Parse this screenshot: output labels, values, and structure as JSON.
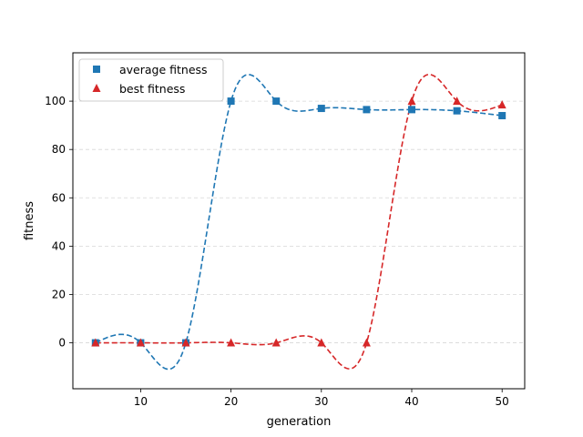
{
  "chart_data": {
    "type": "line",
    "xlabel": "generation",
    "ylabel": "fitness",
    "xlim": [
      2.5,
      52.5
    ],
    "ylim": [
      -19,
      120
    ],
    "xticks": [
      10,
      20,
      30,
      40,
      50
    ],
    "yticks": [
      0,
      20,
      40,
      60,
      80,
      100
    ],
    "grid": "horizontal dashed",
    "legend_position": "top-left",
    "x": [
      5,
      10,
      15,
      20,
      25,
      30,
      35,
      40,
      45,
      50
    ],
    "series": [
      {
        "name": "average fitness",
        "marker": "square",
        "color": "#1f77b4",
        "values": [
          0,
          0,
          0,
          100,
          100,
          97,
          96.5,
          96.5,
          96,
          94
        ]
      },
      {
        "name": "best fitness",
        "marker": "triangle",
        "color": "#d62728",
        "values": [
          0,
          0,
          0,
          0,
          0,
          0,
          0,
          100,
          100,
          98.5
        ]
      }
    ]
  }
}
